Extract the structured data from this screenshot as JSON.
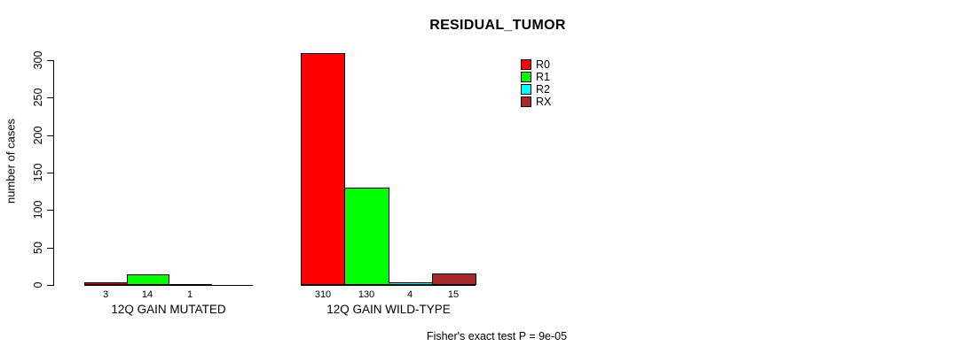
{
  "chart_data": {
    "type": "bar",
    "title": "RESIDUAL_TUMOR",
    "ylabel": "number of cases",
    "xlabel": "",
    "categories": [
      "12Q GAIN MUTATED",
      "12Q GAIN WILD-TYPE"
    ],
    "series": [
      {
        "name": "R0",
        "color": "#ff0000",
        "values": [
          3,
          310
        ]
      },
      {
        "name": "R1",
        "color": "#00ff00",
        "values": [
          14,
          130
        ]
      },
      {
        "name": "R2",
        "color": "#00ffff",
        "values": [
          1,
          4
        ]
      },
      {
        "name": "RX",
        "color": "#a52a2a",
        "values": [
          null,
          15
        ]
      }
    ],
    "yticks": [
      0,
      50,
      100,
      150,
      200,
      250,
      300
    ],
    "ylim": [
      0,
      310
    ],
    "grid": false,
    "bar_value_labels_shown": true,
    "legend_position": "top-right",
    "annotation": "Fisher's exact test P = 9e-05"
  }
}
